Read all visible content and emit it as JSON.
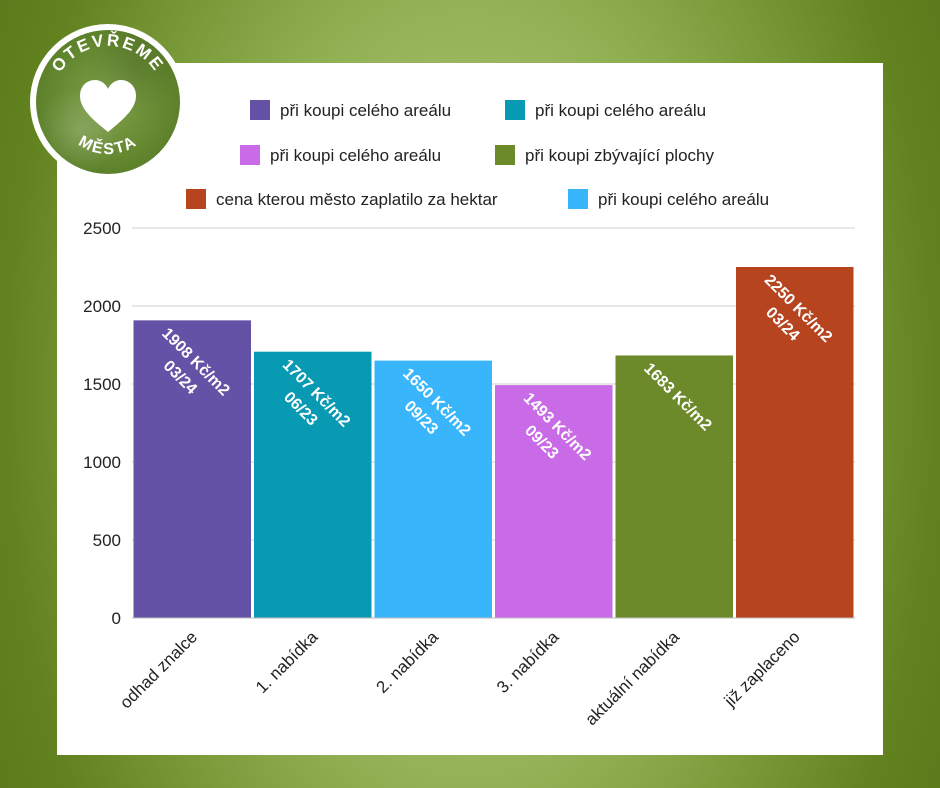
{
  "badge": {
    "top_text": "OTEVŘEME",
    "bottom_text": "MĚSTA"
  },
  "colors": {
    "purple": "#6352a6",
    "teal": "#0899b3",
    "sky": "#39b6fb",
    "violet": "#c96ae6",
    "olive": "#6c8a2a",
    "rust": "#b5441f"
  },
  "chart_data": {
    "type": "bar",
    "legend_position": "top",
    "legend": [
      {
        "label": "při koupi celého areálu",
        "color": "#6352a6"
      },
      {
        "label": "při koupi celého areálu",
        "color": "#0899b3"
      },
      {
        "label": "při koupi celého areálu",
        "color": "#c96ae6"
      },
      {
        "label": "při koupi zbývající plochy",
        "color": "#6c8a2a"
      },
      {
        "label": "cena kterou město zaplatilo za hektar",
        "color": "#b5441f"
      },
      {
        "label": "při koupi celého areálu",
        "color": "#39b6fb"
      }
    ],
    "categories": [
      "odhad znalce",
      "1. nabídka",
      "2. nabídka",
      "3. nabídka",
      "aktuální nabídka",
      "již zaplaceno"
    ],
    "values": [
      1908,
      1707,
      1650,
      1493,
      1683,
      2250
    ],
    "bar_colors": [
      "#6352a6",
      "#0899b3",
      "#39b6fb",
      "#c96ae6",
      "#6c8a2a",
      "#b5441f"
    ],
    "data_labels": [
      [
        "1908 Kč/m2",
        "03/24"
      ],
      [
        "1707 Kč/m2",
        "06/23"
      ],
      [
        "1650 Kč/m2",
        "09/23"
      ],
      [
        "1493 Kč/m2",
        "09/23"
      ],
      [
        "1683 Kč/m2"
      ],
      [
        "2250 Kč/m2",
        "03/24"
      ]
    ],
    "ylim": [
      0,
      2500
    ],
    "y_ticks": [
      0,
      500,
      1000,
      1500,
      2000,
      2500
    ],
    "grid": true
  }
}
